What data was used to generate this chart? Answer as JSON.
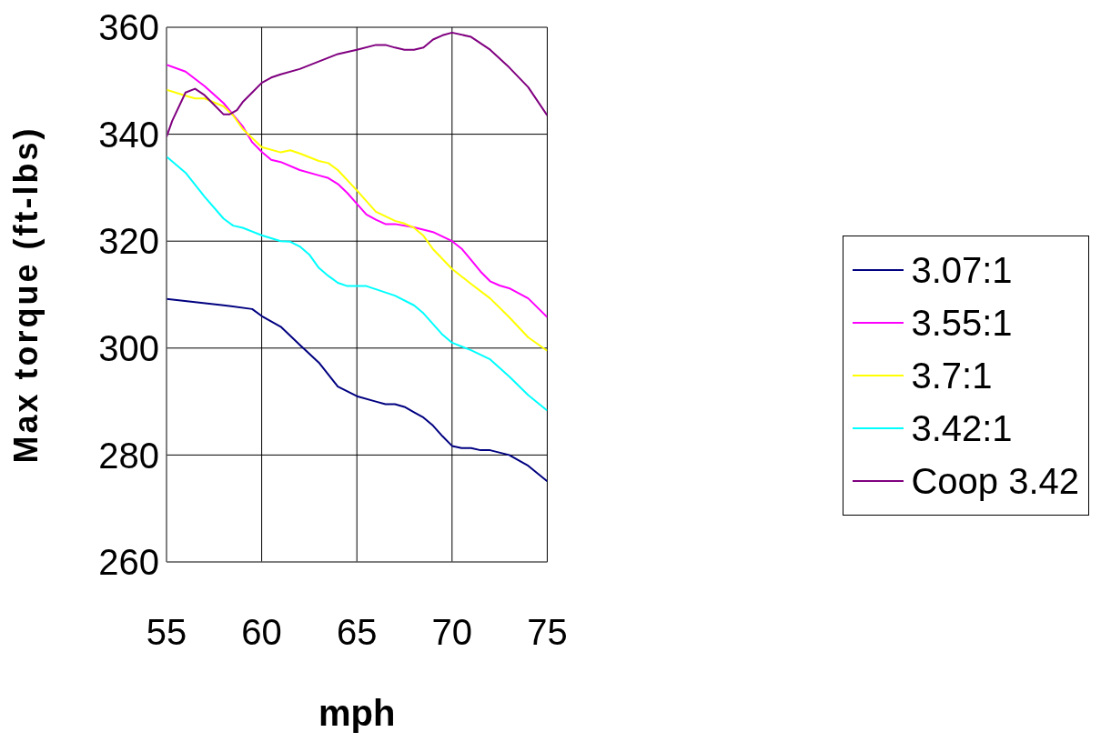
{
  "chart_data": {
    "type": "line",
    "xlabel": "mph",
    "ylabel": "Max torque (ft-lbs)",
    "xlim": [
      55,
      75
    ],
    "xticks": [
      55,
      60,
      65,
      70,
      75
    ],
    "ylim": [
      260,
      360
    ],
    "yticks": [
      260,
      280,
      300,
      320,
      340,
      360
    ],
    "grid": true,
    "legend": "right",
    "marker": "none",
    "line_style": "solid",
    "series": [
      {
        "name": "3.07:1",
        "color": "#000080",
        "x": [
          55,
          58,
          59.5,
          60,
          61,
          62,
          63,
          64,
          65,
          66,
          66.5,
          67,
          67.5,
          68,
          68.5,
          69,
          69.5,
          70,
          70.5,
          71,
          71.5,
          72,
          73,
          74,
          75
        ],
        "values": [
          309.2,
          308,
          307.3,
          306,
          304,
          300.6,
          297.3,
          292.8,
          291,
          290,
          289.5,
          289.5,
          289,
          288,
          287,
          285.5,
          283.5,
          281.7,
          281.3,
          281.3,
          280.9,
          280.9,
          280,
          278,
          275.1
        ]
      },
      {
        "name": "3.55:1",
        "color": "#ff00ff",
        "x": [
          55,
          56,
          57,
          58,
          59,
          59.5,
          60,
          60.5,
          61,
          62,
          63,
          63.5,
          64,
          64.5,
          65,
          65.5,
          66,
          66.5,
          67,
          68,
          69,
          70,
          70.5,
          71,
          71.5,
          72,
          72.5,
          73,
          74,
          75
        ],
        "values": [
          353,
          351.7,
          349,
          345.8,
          341.5,
          338.5,
          336.7,
          335.2,
          334.8,
          333.3,
          332.3,
          331.8,
          330.7,
          329,
          327,
          325,
          324,
          323.2,
          323.2,
          322.6,
          321.7,
          320,
          318.6,
          316.5,
          314.3,
          312.5,
          311.7,
          311.2,
          309.3,
          305.8
        ]
      },
      {
        "name": "3.7:1",
        "color": "#ffff00",
        "x": [
          55,
          56,
          56.5,
          57,
          58,
          58.5,
          59,
          60,
          61,
          61.5,
          62,
          63,
          63.5,
          64,
          65,
          66,
          67,
          67.5,
          68,
          68.5,
          69,
          70,
          71,
          72,
          73,
          74,
          75
        ],
        "values": [
          348.3,
          347.2,
          346.7,
          346.7,
          345.2,
          343.5,
          341,
          337.6,
          336.6,
          337,
          336.4,
          335,
          334.6,
          333.3,
          329.5,
          325.5,
          323.8,
          323.3,
          322.5,
          321,
          318.5,
          314.8,
          312,
          309.3,
          305.8,
          302,
          299.5
        ]
      },
      {
        "name": "3.42:1",
        "color": "#00ffff",
        "x": [
          55,
          56,
          57,
          58,
          58.5,
          59,
          60,
          61,
          61.5,
          62,
          62.5,
          63,
          63.5,
          64,
          64.5,
          65,
          65.5,
          66,
          67,
          68,
          68.5,
          69,
          69.5,
          70,
          71,
          72,
          73,
          74,
          75
        ],
        "values": [
          335.8,
          332.8,
          328.3,
          324.2,
          322.9,
          322.5,
          321.1,
          320,
          319.9,
          319,
          317.5,
          315,
          313.5,
          312.2,
          311.6,
          311.6,
          311.6,
          311,
          309.8,
          308,
          306.5,
          304.5,
          302.5,
          301,
          299.6,
          297.9,
          294.7,
          291.2,
          288.3
        ]
      },
      {
        "name": "Coop 3.42",
        "color": "#800080",
        "x": [
          55,
          55.3,
          56,
          56.5,
          57,
          57.5,
          58,
          58.3,
          58.7,
          59,
          59.5,
          60,
          60.5,
          61,
          62,
          63,
          64,
          65,
          66,
          66.5,
          67,
          67.5,
          68,
          68.5,
          69,
          69.5,
          70,
          71,
          72,
          73,
          74,
          75
        ],
        "values": [
          339.5,
          342.5,
          347.8,
          348.5,
          347.3,
          345.5,
          343.7,
          343.7,
          344.5,
          346,
          347.8,
          349.6,
          350.6,
          351.2,
          352.2,
          353.6,
          355,
          355.8,
          356.7,
          356.7,
          356.2,
          355.8,
          355.8,
          356.2,
          357.7,
          358.5,
          359,
          358.2,
          355.8,
          352.5,
          348.8,
          343.5
        ]
      }
    ]
  }
}
